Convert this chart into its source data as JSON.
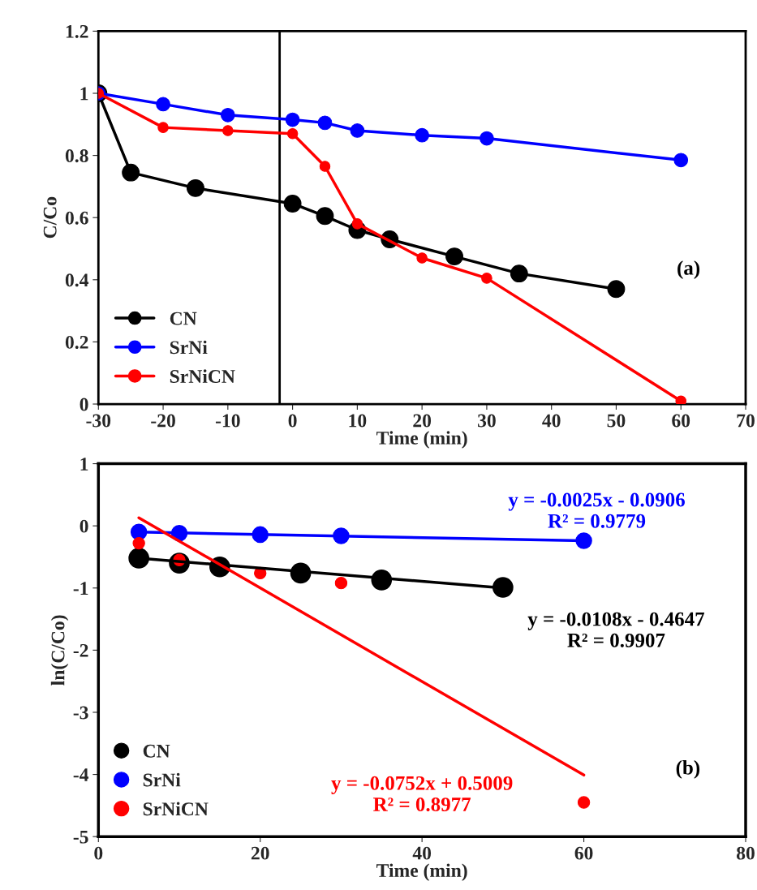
{
  "chart_data": [
    {
      "type": "line",
      "xlabel": "Time (min)",
      "ylabel": "C/Co",
      "marker": "circle",
      "line_style": "solid",
      "legend": "bottom left",
      "grid": false,
      "xlim": [
        -30,
        70
      ],
      "xticks": [
        -30,
        -20,
        -10,
        0,
        10,
        20,
        30,
        40,
        50,
        60,
        70
      ],
      "ylim": [
        0,
        1.2
      ],
      "yticks": [
        0,
        0.2,
        0.4,
        0.6,
        0.8,
        1,
        1.2
      ],
      "series": [
        {
          "name": "CN",
          "color": "#000000",
          "x": [
            -30,
            -25,
            -15,
            0,
            5,
            10,
            15,
            25,
            35,
            50
          ],
          "values": [
            1,
            0.745,
            0.695,
            0.645,
            0.605,
            0.56,
            0.53,
            0.475,
            0.42,
            0.37
          ]
        },
        {
          "name": "SrNi",
          "color": "#0000ff",
          "x": [
            -30,
            -20,
            -10,
            0,
            5,
            10,
            20,
            30,
            60
          ],
          "values": [
            1,
            0.965,
            0.93,
            0.915,
            0.905,
            0.88,
            0.865,
            0.855,
            0.785
          ]
        },
        {
          "name": "SrNiCN",
          "color": "#ff0000",
          "x": [
            -30,
            -20,
            -10,
            0,
            5,
            10,
            20,
            30,
            60
          ],
          "values": [
            1,
            0.89,
            0.88,
            0.87,
            0.765,
            0.58,
            0.47,
            0.405,
            0.01
          ]
        }
      ],
      "ref_lines": [
        {
          "axis": "x",
          "value": -2,
          "color": "#000000",
          "line_style": "solid"
        }
      ],
      "annotations": [
        "(a)"
      ]
    },
    {
      "type": "scatter",
      "xlabel": "Time (min)",
      "ylabel": "ln(C/Co)",
      "marker": "circle",
      "legend": "bottom left",
      "grid": false,
      "xlim": [
        0,
        80
      ],
      "xticks": [
        0,
        20,
        40,
        60,
        80
      ],
      "ylim": [
        -5,
        1
      ],
      "yticks": [
        -5,
        -4,
        -3,
        -2,
        -1,
        0,
        1
      ],
      "series": [
        {
          "name": "CN",
          "color": "#000000",
          "x": [
            5,
            10,
            15,
            25,
            35,
            50
          ],
          "values": [
            -0.52,
            -0.6,
            -0.66,
            -0.76,
            -0.87,
            -0.99
          ]
        },
        {
          "name": "SrNi",
          "color": "#0000ff",
          "x": [
            5,
            10,
            20,
            30,
            60
          ],
          "values": [
            -0.1,
            -0.12,
            -0.14,
            -0.16,
            -0.24
          ]
        },
        {
          "name": "SrNiCN",
          "color": "#ff0000",
          "x": [
            5,
            10,
            20,
            30,
            60
          ],
          "values": [
            -0.28,
            -0.55,
            -0.76,
            -0.92,
            -4.45
          ]
        },
        {
          "type": "line",
          "color": "#000000",
          "x": [
            5,
            50
          ],
          "values": [
            -0.52,
            -1.0
          ],
          "marker": "none"
        },
        {
          "type": "line",
          "color": "#0000ff",
          "x": [
            5,
            60
          ],
          "values": [
            -0.1,
            -0.24
          ],
          "marker": "none"
        },
        {
          "type": "line",
          "color": "#ff0000",
          "x": [
            5,
            60
          ],
          "values": [
            0.13,
            -4.01
          ],
          "marker": "none"
        }
      ],
      "annotations": [
        "y = -0.0025x - 0.0906\nR² = 0.9779",
        "y = -0.0108x - 0.4647\nR² = 0.9907",
        "y = -0.0752x + 0.5009\nR² = 0.8977",
        "(b)"
      ]
    }
  ]
}
